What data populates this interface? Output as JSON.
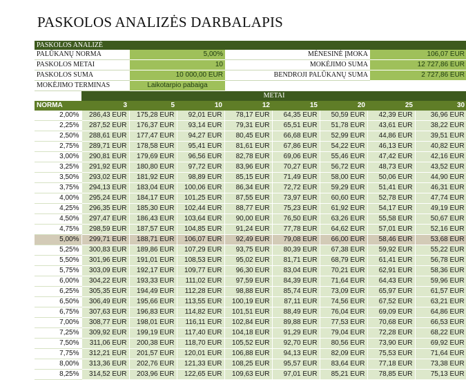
{
  "title": "PASKOLOS ANALIZĖS DARBALAPIS",
  "summary": {
    "header": "PASKOLOS ANALIZĖ",
    "rows": [
      {
        "label": "PALŪKANŲ NORMA",
        "value": "5,00%",
        "rlabel": "MĖNESINĖ ĮMOKA",
        "rvalue": "106,07 EUR"
      },
      {
        "label": "PASKOLOS METAI",
        "value": "10",
        "rlabel": "MOKĖJIMO SUMA",
        "rvalue": "12 727,86 EUR"
      },
      {
        "label": "PASKOLOS SUMA",
        "value": "10 000,00 EUR",
        "rlabel": "BENDROJI PALŪKANŲ SUMA",
        "rvalue": "2 727,86 EUR"
      },
      {
        "label": "MOKĖJIMO TERMINAS",
        "value": "Laikotarpio pabaiga",
        "rlabel": "",
        "rvalue": ""
      }
    ]
  },
  "table": {
    "metai_label": "METAI",
    "norma_label": "NORMA",
    "years": [
      "3",
      "5",
      "10",
      "12",
      "15",
      "20",
      "25",
      "30"
    ],
    "highlight_rate": "5,00%",
    "rows": [
      {
        "rate": "2,00%",
        "values": [
          "286,43 EUR",
          "175,28 EUR",
          "92,01 EUR",
          "78,17 EUR",
          "64,35 EUR",
          "50,59 EUR",
          "42,39 EUR",
          "36,96 EUR"
        ]
      },
      {
        "rate": "2,25%",
        "values": [
          "287,52 EUR",
          "176,37 EUR",
          "93,14 EUR",
          "79,31 EUR",
          "65,51 EUR",
          "51,78 EUR",
          "43,61 EUR",
          "38,22 EUR"
        ]
      },
      {
        "rate": "2,50%",
        "values": [
          "288,61 EUR",
          "177,47 EUR",
          "94,27 EUR",
          "80,45 EUR",
          "66,68 EUR",
          "52,99 EUR",
          "44,86 EUR",
          "39,51 EUR"
        ]
      },
      {
        "rate": "2,75%",
        "values": [
          "289,71 EUR",
          "178,58 EUR",
          "95,41 EUR",
          "81,61 EUR",
          "67,86 EUR",
          "54,22 EUR",
          "46,13 EUR",
          "40,82 EUR"
        ]
      },
      {
        "rate": "3,00%",
        "values": [
          "290,81 EUR",
          "179,69 EUR",
          "96,56 EUR",
          "82,78 EUR",
          "69,06 EUR",
          "55,46 EUR",
          "47,42 EUR",
          "42,16 EUR"
        ]
      },
      {
        "rate": "3,25%",
        "values": [
          "291,92 EUR",
          "180,80 EUR",
          "97,72 EUR",
          "83,96 EUR",
          "70,27 EUR",
          "56,72 EUR",
          "48,73 EUR",
          "43,52 EUR"
        ]
      },
      {
        "rate": "3,50%",
        "values": [
          "293,02 EUR",
          "181,92 EUR",
          "98,89 EUR",
          "85,15 EUR",
          "71,49 EUR",
          "58,00 EUR",
          "50,06 EUR",
          "44,90 EUR"
        ]
      },
      {
        "rate": "3,75%",
        "values": [
          "294,13 EUR",
          "183,04 EUR",
          "100,06 EUR",
          "86,34 EUR",
          "72,72 EUR",
          "59,29 EUR",
          "51,41 EUR",
          "46,31 EUR"
        ]
      },
      {
        "rate": "4,00%",
        "values": [
          "295,24 EUR",
          "184,17 EUR",
          "101,25 EUR",
          "87,55 EUR",
          "73,97 EUR",
          "60,60 EUR",
          "52,78 EUR",
          "47,74 EUR"
        ]
      },
      {
        "rate": "4,25%",
        "values": [
          "296,35 EUR",
          "185,30 EUR",
          "102,44 EUR",
          "88,77 EUR",
          "75,23 EUR",
          "61,92 EUR",
          "54,17 EUR",
          "49,19 EUR"
        ]
      },
      {
        "rate": "4,50%",
        "values": [
          "297,47 EUR",
          "186,43 EUR",
          "103,64 EUR",
          "90,00 EUR",
          "76,50 EUR",
          "63,26 EUR",
          "55,58 EUR",
          "50,67 EUR"
        ]
      },
      {
        "rate": "4,75%",
        "values": [
          "298,59 EUR",
          "187,57 EUR",
          "104,85 EUR",
          "91,24 EUR",
          "77,78 EUR",
          "64,62 EUR",
          "57,01 EUR",
          "52,16 EUR"
        ]
      },
      {
        "rate": "5,00%",
        "values": [
          "299,71 EUR",
          "188,71 EUR",
          "106,07 EUR",
          "92,49 EUR",
          "79,08 EUR",
          "66,00 EUR",
          "58,46 EUR",
          "53,68 EUR"
        ]
      },
      {
        "rate": "5,25%",
        "values": [
          "300,83 EUR",
          "189,86 EUR",
          "107,29 EUR",
          "93,75 EUR",
          "80,39 EUR",
          "67,38 EUR",
          "59,92 EUR",
          "55,22 EUR"
        ]
      },
      {
        "rate": "5,50%",
        "values": [
          "301,96 EUR",
          "191,01 EUR",
          "108,53 EUR",
          "95,02 EUR",
          "81,71 EUR",
          "68,79 EUR",
          "61,41 EUR",
          "56,78 EUR"
        ]
      },
      {
        "rate": "5,75%",
        "values": [
          "303,09 EUR",
          "192,17 EUR",
          "109,77 EUR",
          "96,30 EUR",
          "83,04 EUR",
          "70,21 EUR",
          "62,91 EUR",
          "58,36 EUR"
        ]
      },
      {
        "rate": "6,00%",
        "values": [
          "304,22 EUR",
          "193,33 EUR",
          "111,02 EUR",
          "97,59 EUR",
          "84,39 EUR",
          "71,64 EUR",
          "64,43 EUR",
          "59,96 EUR"
        ]
      },
      {
        "rate": "6,25%",
        "values": [
          "305,35 EUR",
          "194,49 EUR",
          "112,28 EUR",
          "98,88 EUR",
          "85,74 EUR",
          "73,09 EUR",
          "65,97 EUR",
          "61,57 EUR"
        ]
      },
      {
        "rate": "6,50%",
        "values": [
          "306,49 EUR",
          "195,66 EUR",
          "113,55 EUR",
          "100,19 EUR",
          "87,11 EUR",
          "74,56 EUR",
          "67,52 EUR",
          "63,21 EUR"
        ]
      },
      {
        "rate": "6,75%",
        "values": [
          "307,63 EUR",
          "196,83 EUR",
          "114,82 EUR",
          "101,51 EUR",
          "88,49 EUR",
          "76,04 EUR",
          "69,09 EUR",
          "64,86 EUR"
        ]
      },
      {
        "rate": "7,00%",
        "values": [
          "308,77 EUR",
          "198,01 EUR",
          "116,11 EUR",
          "102,84 EUR",
          "89,88 EUR",
          "77,53 EUR",
          "70,68 EUR",
          "66,53 EUR"
        ]
      },
      {
        "rate": "7,25%",
        "values": [
          "309,92 EUR",
          "199,19 EUR",
          "117,40 EUR",
          "104,18 EUR",
          "91,29 EUR",
          "79,04 EUR",
          "72,28 EUR",
          "68,22 EUR"
        ]
      },
      {
        "rate": "7,50%",
        "values": [
          "311,06 EUR",
          "200,38 EUR",
          "118,70 EUR",
          "105,52 EUR",
          "92,70 EUR",
          "80,56 EUR",
          "73,90 EUR",
          "69,92 EUR"
        ]
      },
      {
        "rate": "7,75%",
        "values": [
          "312,21 EUR",
          "201,57 EUR",
          "120,01 EUR",
          "106,88 EUR",
          "94,13 EUR",
          "82,09 EUR",
          "75,53 EUR",
          "71,64 EUR"
        ]
      },
      {
        "rate": "8,00%",
        "values": [
          "313,36 EUR",
          "202,76 EUR",
          "121,33 EUR",
          "108,25 EUR",
          "95,57 EUR",
          "83,64 EUR",
          "77,18 EUR",
          "73,38 EUR"
        ]
      },
      {
        "rate": "8,25%",
        "values": [
          "314,52 EUR",
          "203,96 EUR",
          "122,65 EUR",
          "109,63 EUR",
          "97,01 EUR",
          "85,21 EUR",
          "78,85 EUR",
          "75,13 EUR"
        ]
      }
    ]
  }
}
